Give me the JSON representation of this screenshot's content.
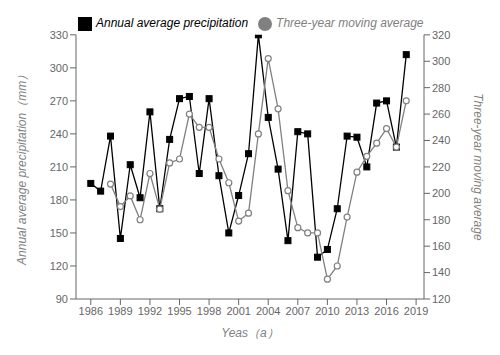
{
  "chart_data": {
    "type": "line",
    "xlabel": "Yeas（a）",
    "ylabel": "Annual average precipitation（mm）",
    "y2label": "Three-year moving average",
    "x": [
      1986,
      1987,
      1988,
      1989,
      1990,
      1991,
      1992,
      1993,
      1994,
      1995,
      1996,
      1997,
      1998,
      1999,
      2000,
      2001,
      2002,
      2003,
      2004,
      2005,
      2006,
      2007,
      2008,
      2009,
      2010,
      2011,
      2012,
      2013,
      2014,
      2015,
      2016,
      2017,
      2018
    ],
    "series": [
      {
        "name": "Annual average precipitation",
        "color": "#000000",
        "marker": "square",
        "values": [
          195,
          188,
          238,
          145,
          212,
          182,
          260,
          172,
          235,
          272,
          274,
          204,
          272,
          202,
          150,
          184,
          222,
          330,
          255,
          208,
          143,
          242,
          240,
          128,
          135,
          172,
          238,
          237,
          210,
          268,
          270,
          228,
          312
        ]
      },
      {
        "name": "Three-year moving average",
        "color": "#808080",
        "marker": "circle",
        "axis": "y2",
        "values": [
          null,
          null,
          207,
          190,
          198,
          180,
          215,
          188,
          223,
          226,
          260,
          250,
          250,
          226,
          208,
          179,
          185,
          245,
          302,
          264,
          202,
          174,
          170,
          170,
          135,
          145,
          182,
          216,
          228,
          238,
          249,
          235,
          270
        ]
      }
    ],
    "xlim": [
      1984.5,
      2019.8
    ],
    "xticks": [
      1986,
      1989,
      1992,
      1995,
      1998,
      2001,
      2004,
      2007,
      2010,
      2013,
      2016,
      2019
    ],
    "ylim": [
      90,
      330
    ],
    "yticks": [
      90,
      120,
      150,
      180,
      210,
      240,
      270,
      300,
      330
    ],
    "y2lim": [
      120,
      320
    ],
    "y2ticks": [
      120,
      140,
      160,
      180,
      200,
      220,
      240,
      260,
      280,
      300,
      320
    ],
    "grid": false,
    "legend": "upper left"
  }
}
